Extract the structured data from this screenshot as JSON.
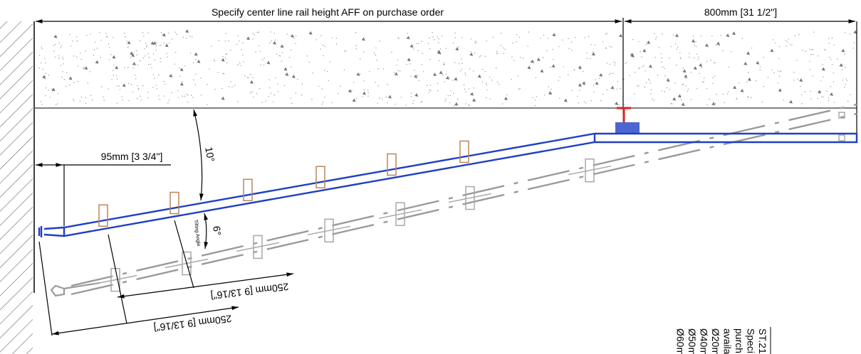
{
  "dimensions": {
    "rail_height_note": "Specify center line rail height AFF on purchase order",
    "rail_extension": "800mm [31 1/2\"]",
    "wall_offset": "95mm [3 3/4\"]",
    "ceiling_angle": "10°",
    "tilt_angle": "6°",
    "tilt_label": "Tilting Angle",
    "spacing_upper": "250mm [9 13/16\"]",
    "spacing_lower": "250mm [9 13/16\"]"
  },
  "notes": [
    "ST.21",
    "Speci",
    "purch",
    "availa",
    "Ø20m",
    "Ø40m",
    "Ø50m",
    "Ø60m"
  ]
}
